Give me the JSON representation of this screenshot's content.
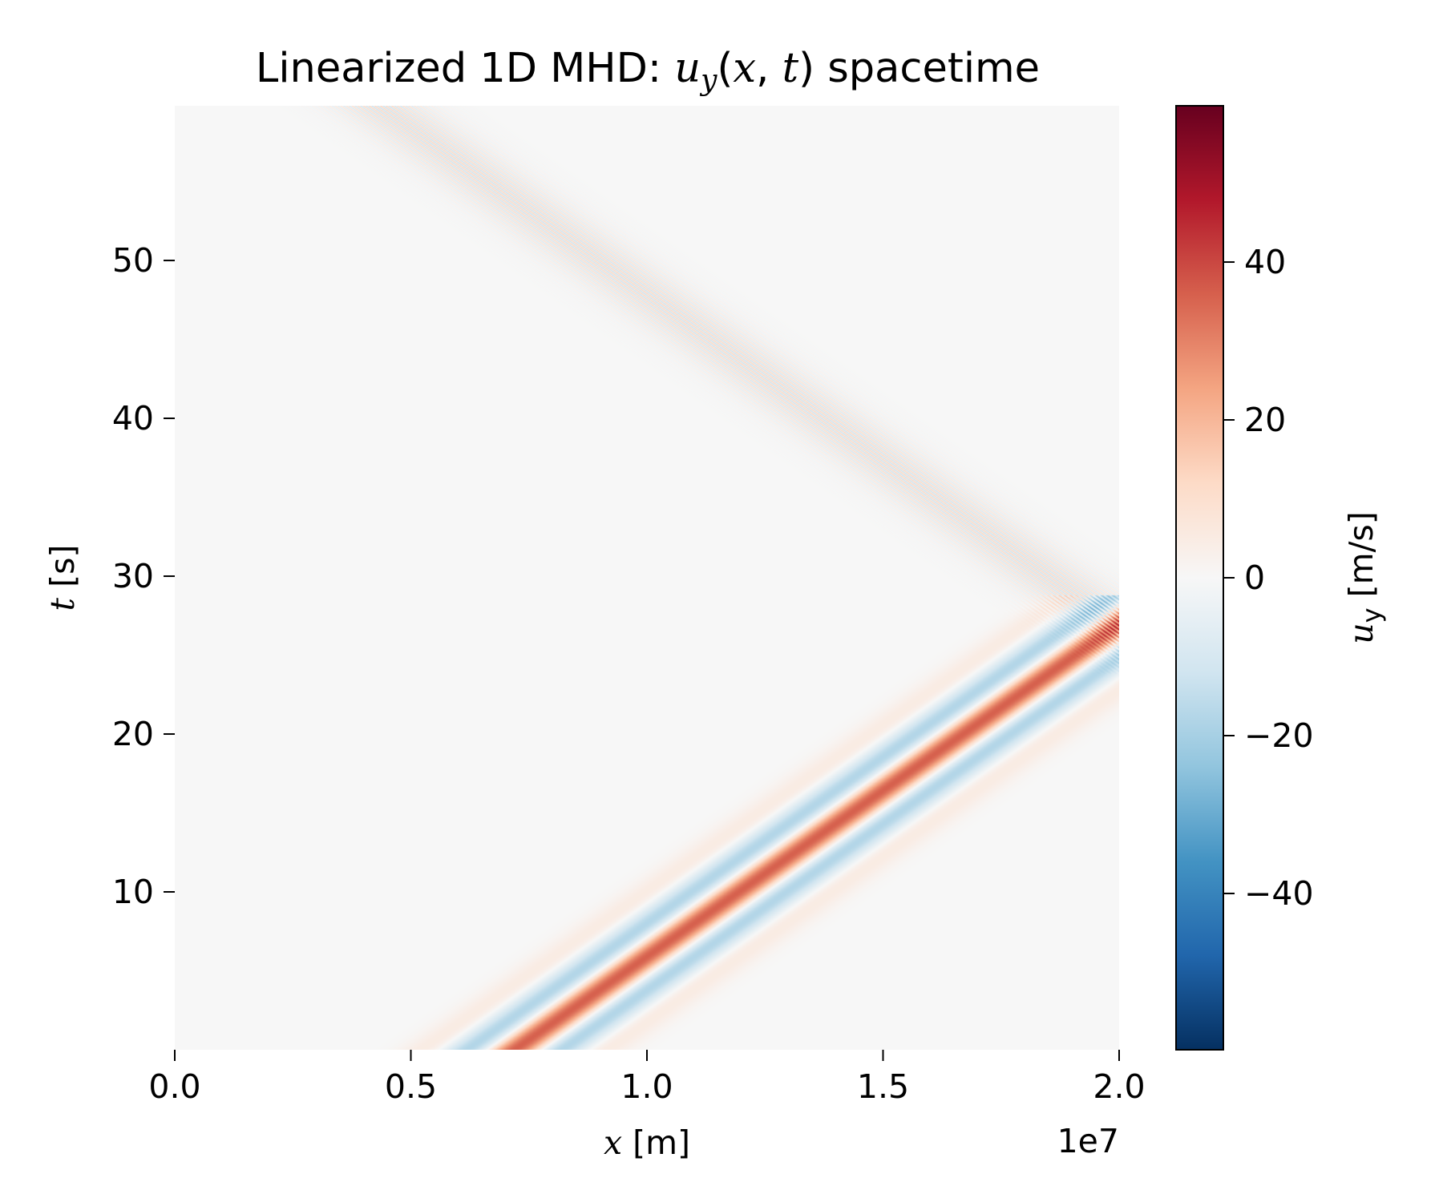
{
  "chart_data": {
    "type": "heatmap",
    "title": {
      "prefix": "Linearized 1D MHD: ",
      "var": "u",
      "var_sub": "y",
      "args_open": "(",
      "args_x": "x",
      "args_comma": ", ",
      "args_t": "t",
      "args_close": ")",
      "suffix": " spacetime"
    },
    "xlabel": {
      "var": "x",
      "unit": " [m]"
    },
    "ylabel": {
      "var": "t",
      "unit": " [s]"
    },
    "x_offset_text": "1e7",
    "xlim": [
      0.0,
      2.0
    ],
    "ylim": [
      0.0,
      59.8
    ],
    "x_scale_multiplier": 10000000,
    "x_ticks": [
      {
        "value": 0.0,
        "label": "0.0"
      },
      {
        "value": 0.5,
        "label": "0.5"
      },
      {
        "value": 1.0,
        "label": "1.0"
      },
      {
        "value": 1.5,
        "label": "1.5"
      },
      {
        "value": 2.0,
        "label": "2.0"
      }
    ],
    "y_ticks": [
      {
        "value": 10,
        "label": "10"
      },
      {
        "value": 20,
        "label": "20"
      },
      {
        "value": 30,
        "label": "30"
      },
      {
        "value": 40,
        "label": "40"
      },
      {
        "value": 50,
        "label": "50"
      }
    ],
    "colorbar": {
      "label_var": "u",
      "label_sub": "y",
      "label_unit": " [m/s]",
      "vmin": -59.8,
      "vmax": 59.8,
      "colormap": "RdBu_r",
      "ticks": [
        {
          "value": 40,
          "label": "40"
        },
        {
          "value": 20,
          "label": "20"
        },
        {
          "value": 0,
          "label": "0"
        },
        {
          "value": -20,
          "label": "−20"
        },
        {
          "value": -40,
          "label": "−40"
        }
      ]
    },
    "field": {
      "description_free": true,
      "incident_wave": {
        "x_at_t0": 0.72,
        "speed_per_s": 0.0475,
        "peak": 38,
        "trough": -20,
        "side_lobe": 6,
        "width": 0.04
      },
      "reflection": {
        "x": 2.0,
        "t": 26.8
      },
      "reflected_wave": {
        "peak": 14,
        "trough": -14,
        "oscillation_period_x": 0.012,
        "width": 0.07
      }
    },
    "grid": false,
    "colors": {
      "background": "#ffffff",
      "axes_face": "#f7f7f7",
      "text": "#000000"
    }
  }
}
